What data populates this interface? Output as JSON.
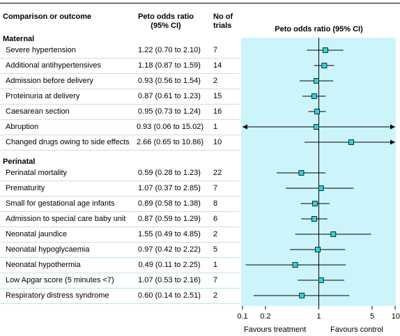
{
  "headers": {
    "comparison": "Comparison or outcome",
    "odds_line1": "Peto odds ratio",
    "odds_line2": "(95% CI)",
    "trials_line1": "No of",
    "trials_line2": "trials",
    "plot_title": "Peto odds ratio (95% CI)"
  },
  "favours": {
    "left": "Favours treatment",
    "right": "Favours control"
  },
  "chart_data": {
    "type": "forest",
    "x_scale": "log",
    "xlim": [
      0.1,
      10
    ],
    "x_ticks": [
      {
        "value": 0.1,
        "label": "0.1"
      },
      {
        "value": 0.2,
        "label": "0.2"
      },
      {
        "value": 1,
        "label": "1"
      },
      {
        "value": 5,
        "label": "5"
      },
      {
        "value": 10,
        "label": "10"
      }
    ],
    "reference_line": 1,
    "colors": {
      "panel": "#ccf5fb",
      "marker": "#33d1db",
      "line": "#000000"
    },
    "sections": [
      {
        "name": "Maternal",
        "rows": [
          {
            "label": "Severe hypertension",
            "ci_text": "1.22 (0.70 to 2.10)",
            "trials": "7",
            "or": 1.22,
            "lo": 0.7,
            "hi": 2.1
          },
          {
            "label": "Additional antihypertensives",
            "ci_text": "1.18 (0.87 to 1.59)",
            "trials": "14",
            "or": 1.18,
            "lo": 0.87,
            "hi": 1.59
          },
          {
            "label": "Admission before delivery",
            "ci_text": "0.93 (0.56 to 1.54)",
            "trials": "2",
            "or": 0.93,
            "lo": 0.56,
            "hi": 1.54
          },
          {
            "label": "Proteinuria at delivery",
            "ci_text": "0.87 (0.61 to 1.23)",
            "trials": "15",
            "or": 0.87,
            "lo": 0.61,
            "hi": 1.23
          },
          {
            "label": "Caesarean section",
            "ci_text": "0.95 (0.73 to 1.24)",
            "trials": "16",
            "or": 0.95,
            "lo": 0.73,
            "hi": 1.24
          },
          {
            "label": "Abruption",
            "ci_text": "0.93 (0.06 to 15.02)",
            "trials": "1",
            "or": 0.93,
            "lo": 0.06,
            "hi": 15.02
          },
          {
            "label": "Changed drugs owing to side effects",
            "ci_text": "2.66 (0.65 to 10.86)",
            "trials": "10",
            "or": 2.66,
            "lo": 0.65,
            "hi": 10.86
          }
        ]
      },
      {
        "name": "Perinatal",
        "rows": [
          {
            "label": "Perinatal mortality",
            "ci_text": "0.59 (0.28 to 1.23)",
            "trials": "22",
            "or": 0.59,
            "lo": 0.28,
            "hi": 1.23
          },
          {
            "label": "Prematurity",
            "ci_text": "1.07 (0.37 to 2.85)",
            "trials": "7",
            "or": 1.07,
            "lo": 0.37,
            "hi": 2.85
          },
          {
            "label": "Small for gestational age infants",
            "ci_text": "0.89 (0.58 to 1.38)",
            "trials": "8",
            "or": 0.89,
            "lo": 0.58,
            "hi": 1.38
          },
          {
            "label": "Admission to special care baby unit",
            "ci_text": "0.87 (0.59 to 1.29)",
            "trials": "6",
            "or": 0.87,
            "lo": 0.59,
            "hi": 1.29
          },
          {
            "label": "Neonatal jaundice",
            "ci_text": "1.55 (0.49 to 4.85)",
            "trials": "2",
            "or": 1.55,
            "lo": 0.49,
            "hi": 4.85
          },
          {
            "label": "Neonatal hypoglycaemia",
            "ci_text": "0.97 (0.42 to 2.22)",
            "trials": "5",
            "or": 0.97,
            "lo": 0.42,
            "hi": 2.22
          },
          {
            "label": "Neonatal hypothermia",
            "ci_text": "0.49 (0.11 to 2.25)",
            "trials": "1",
            "or": 0.49,
            "lo": 0.11,
            "hi": 2.25
          },
          {
            "label": "Low Apgar score (5 minutes <7)",
            "ci_text": "1.07 (0.53 to 2.16)",
            "trials": "7",
            "or": 1.07,
            "lo": 0.53,
            "hi": 2.16
          },
          {
            "label": "Respiratory distress syndrome",
            "ci_text": "0.60 (0.14 to 2.51)",
            "trials": "2",
            "or": 0.6,
            "lo": 0.14,
            "hi": 2.51
          }
        ]
      }
    ]
  }
}
